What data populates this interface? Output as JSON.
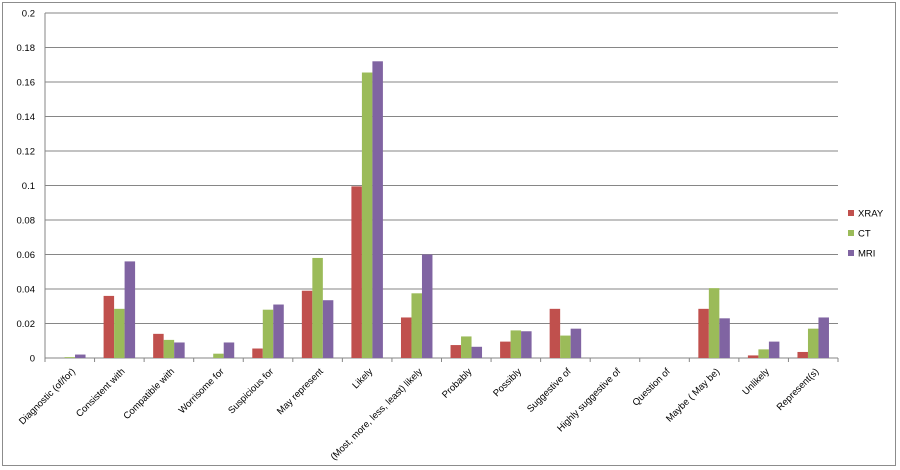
{
  "chart_data": {
    "type": "bar",
    "categories": [
      "Diagnostic (of/for)",
      "Consistent with",
      "Compatible with",
      "Worrisome for",
      "Suspicious for",
      "May represent",
      "Likely",
      "(Most, more, less, least) likely",
      "Probably",
      "Possibly",
      "Suggestive of",
      "Highly suggestive of",
      "Question of",
      "Maybe ( May be)",
      "Unlikely",
      "Represent(s)"
    ],
    "series": [
      {
        "name": "XRAY",
        "color": "#c0504d",
        "values": [
          0,
          0.036,
          0.014,
          0,
          0.0055,
          0.039,
          0.0995,
          0.0235,
          0.0075,
          0.0095,
          0.0285,
          0,
          0,
          0.0285,
          0.0015,
          0.0035
        ]
      },
      {
        "name": "CT",
        "color": "#9bbb59",
        "values": [
          0.0005,
          0.0285,
          0.0105,
          0.0025,
          0.028,
          0.058,
          0.1655,
          0.0375,
          0.0125,
          0.016,
          0.013,
          0,
          0,
          0.0405,
          0.005,
          0.017
        ]
      },
      {
        "name": "MRI",
        "color": "#8064a2",
        "values": [
          0.002,
          0.056,
          0.009,
          0.009,
          0.031,
          0.0335,
          0.172,
          0.06,
          0.0065,
          0.0155,
          0.017,
          0,
          0,
          0.023,
          0.0095,
          0.0235
        ]
      }
    ],
    "yticks": [
      "0",
      "0.02",
      "0.04",
      "0.06",
      "0.08",
      "0.1",
      "0.12",
      "0.14",
      "0.16",
      "0.18",
      "0.2"
    ],
    "ylim": [
      0,
      0.2
    ],
    "grid": true,
    "legend": "right"
  }
}
